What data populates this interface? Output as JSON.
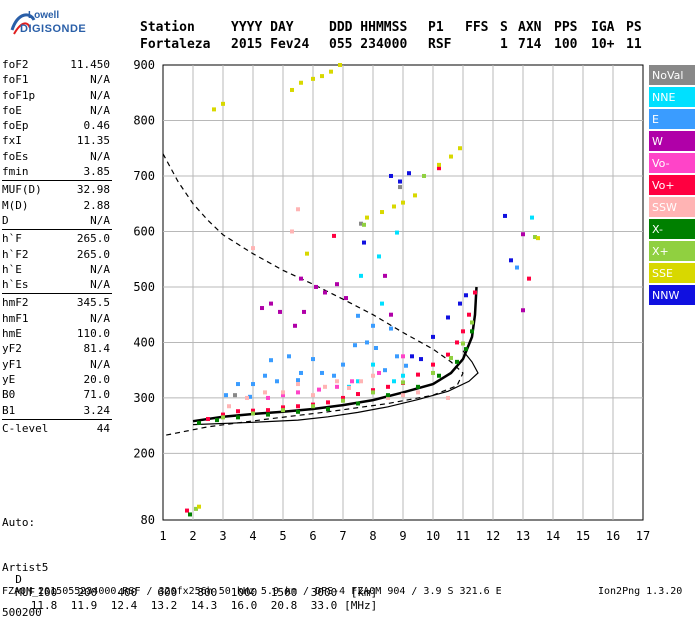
{
  "logo": {
    "brand": "Lowell",
    "model": "DIGISONDE"
  },
  "header": {
    "row1": [
      "Station",
      "YYYY DAY",
      "DDD HHMMSS",
      "P1",
      "FFS",
      "S",
      "AXN",
      "PPS",
      "IGA",
      "PS"
    ],
    "row2": [
      "Fortaleza",
      "2015 Fev24",
      "055 234000",
      "RSF",
      "",
      "1",
      "714",
      "100",
      "10+",
      "11"
    ]
  },
  "params": [
    {
      "k": "foF2",
      "v": "11.450"
    },
    {
      "k": "foF1",
      "v": "N/A"
    },
    {
      "k": "foF1p",
      "v": "N/A"
    },
    {
      "k": "foE",
      "v": "N/A"
    },
    {
      "k": "foEp",
      "v": "0.46"
    },
    {
      "k": "fxI",
      "v": "11.35"
    },
    {
      "k": "foEs",
      "v": "N/A"
    },
    {
      "k": "fmin",
      "v": "3.85"
    },
    {
      "k": "MUF(D)",
      "v": "32.98"
    },
    {
      "k": "M(D)",
      "v": "2.88"
    },
    {
      "k": "D",
      "v": "N/A"
    },
    {
      "k": "h`F",
      "v": "265.0"
    },
    {
      "k": "h`F2",
      "v": "265.0"
    },
    {
      "k": "h`E",
      "v": "N/A"
    },
    {
      "k": "h`Es",
      "v": "N/A"
    },
    {
      "k": "hmF2",
      "v": "345.5"
    },
    {
      "k": "hmF1",
      "v": "N/A"
    },
    {
      "k": "hmE",
      "v": "110.0"
    },
    {
      "k": "yF2",
      "v": "81.4"
    },
    {
      "k": "yF1",
      "v": "N/A"
    },
    {
      "k": "yE",
      "v": "20.0"
    },
    {
      "k": "B0",
      "v": "71.0"
    },
    {
      "k": "B1",
      "v": "3.24"
    },
    {
      "k": "C-level",
      "v": "44"
    }
  ],
  "auto": {
    "label": "Auto:",
    "system": "Artist5",
    "version": "500200"
  },
  "legend": [
    {
      "label": "NoVal",
      "color": "#888888"
    },
    {
      "label": "NNE",
      "color": "#00e0ff"
    },
    {
      "label": "E",
      "color": "#3a9cff"
    },
    {
      "label": "W",
      "color": "#b000a8"
    },
    {
      "label": "Vo-",
      "color": "#ff44c8"
    },
    {
      "label": "Vo+",
      "color": "#ff0040"
    },
    {
      "label": "SSW",
      "color": "#ffb4b4"
    },
    {
      "label": "X-",
      "color": "#008000"
    },
    {
      "label": "X+",
      "color": "#90d040"
    },
    {
      "label": "SSE",
      "color": "#d8d800"
    },
    {
      "label": "NNW",
      "color": "#1010e0"
    }
  ],
  "footer": {
    "d_label": "D",
    "d_values": [
      "100",
      "200",
      "400",
      "600",
      "800",
      "1000",
      "1500",
      "3000",
      "[km]"
    ],
    "muf_label": "MUF",
    "muf_values": [
      "11.8",
      "11.9",
      "12.4",
      "13.2",
      "14.3",
      "16.0",
      "20.8",
      "33.0",
      "[MHz]"
    ],
    "file_line": "FZA0M_2015055234000.RSF / 320fx256h 50 kHz 5.0 km / DPS-4 FZA0M 904 / 3.9 S 321.6 E",
    "program": "Ion2Png 1.3.20"
  },
  "chart_data": {
    "type": "scatter",
    "title": "",
    "xlabel": "",
    "ylabel": "",
    "xlim": [
      1,
      17
    ],
    "ylim": [
      80,
      900
    ],
    "x_ticks": [
      1,
      2,
      3,
      4,
      5,
      6,
      7,
      8,
      9,
      10,
      11,
      12,
      13,
      14,
      15,
      16,
      17
    ],
    "y_ticks": [
      80,
      200,
      300,
      400,
      500,
      600,
      700,
      800,
      900
    ],
    "grid": true,
    "legend_position": "right",
    "series": [
      {
        "name": "NoVal",
        "color": "#888888",
        "points": [
          [
            7.6,
            614
          ],
          [
            8.9,
            680
          ],
          [
            3.4,
            305
          ]
        ]
      },
      {
        "name": "NNE",
        "color": "#00e0ff",
        "points": [
          [
            7.5,
            330
          ],
          [
            8.0,
            360
          ],
          [
            8.3,
            470
          ],
          [
            8.7,
            330
          ],
          [
            9.0,
            340
          ],
          [
            7.6,
            520
          ],
          [
            8.2,
            555
          ],
          [
            8.8,
            598
          ],
          [
            13.3,
            625
          ],
          [
            7.2,
            320
          ]
        ]
      },
      {
        "name": "E",
        "color": "#3a9cff",
        "points": [
          [
            4.0,
            325
          ],
          [
            4.4,
            340
          ],
          [
            4.8,
            330
          ],
          [
            5.2,
            375
          ],
          [
            5.6,
            345
          ],
          [
            6.0,
            370
          ],
          [
            6.3,
            345
          ],
          [
            6.7,
            340
          ],
          [
            7.0,
            360
          ],
          [
            7.4,
            395
          ],
          [
            7.8,
            400
          ],
          [
            8.1,
            390
          ],
          [
            8.4,
            350
          ],
          [
            8.8,
            375
          ],
          [
            9.1,
            358
          ],
          [
            3.5,
            325
          ],
          [
            3.9,
            302
          ],
          [
            4.6,
            368
          ],
          [
            5.5,
            332
          ],
          [
            7.5,
            448
          ],
          [
            8.0,
            430
          ],
          [
            8.6,
            425
          ],
          [
            3.1,
            305
          ],
          [
            12.8,
            535
          ]
        ]
      },
      {
        "name": "W",
        "color": "#b000a8",
        "points": [
          [
            4.3,
            462
          ],
          [
            4.6,
            470
          ],
          [
            4.9,
            455
          ],
          [
            5.4,
            430
          ],
          [
            5.7,
            455
          ],
          [
            6.1,
            500
          ],
          [
            6.4,
            490
          ],
          [
            6.8,
            505
          ],
          [
            7.1,
            480
          ],
          [
            8.4,
            520
          ],
          [
            8.6,
            450
          ],
          [
            5.6,
            515
          ],
          [
            13.0,
            595
          ],
          [
            13.0,
            458
          ]
        ]
      },
      {
        "name": "Vo-",
        "color": "#ff44c8",
        "points": [
          [
            4.5,
            300
          ],
          [
            5.0,
            305
          ],
          [
            5.5,
            310
          ],
          [
            6.2,
            315
          ],
          [
            6.8,
            320
          ],
          [
            7.3,
            330
          ],
          [
            8.2,
            345
          ],
          [
            9.0,
            375
          ]
        ]
      },
      {
        "name": "Vo+",
        "color": "#ff0040",
        "points": [
          [
            2.5,
            262
          ],
          [
            3.0,
            270
          ],
          [
            3.5,
            276
          ],
          [
            4.0,
            277
          ],
          [
            4.5,
            278
          ],
          [
            5.0,
            283
          ],
          [
            5.5,
            285
          ],
          [
            6.0,
            288
          ],
          [
            6.5,
            292
          ],
          [
            7.0,
            300
          ],
          [
            7.5,
            307
          ],
          [
            8.0,
            314
          ],
          [
            8.5,
            320
          ],
          [
            9.0,
            327
          ],
          [
            9.5,
            342
          ],
          [
            10.0,
            360
          ],
          [
            10.5,
            378
          ],
          [
            10.8,
            400
          ],
          [
            11.0,
            420
          ],
          [
            11.2,
            450
          ],
          [
            11.4,
            490
          ],
          [
            6.7,
            592
          ],
          [
            10.2,
            714
          ],
          [
            13.2,
            515
          ],
          [
            1.8,
            97
          ]
        ]
      },
      {
        "name": "SSW",
        "color": "#ffb4b4",
        "points": [
          [
            3.2,
            285
          ],
          [
            3.8,
            300
          ],
          [
            4.4,
            310
          ],
          [
            5.0,
            310
          ],
          [
            5.5,
            325
          ],
          [
            6.0,
            305
          ],
          [
            6.4,
            320
          ],
          [
            6.8,
            330
          ],
          [
            7.2,
            318
          ],
          [
            7.6,
            330
          ],
          [
            8.0,
            340
          ],
          [
            8.5,
            300
          ],
          [
            9.0,
            305
          ],
          [
            9.5,
            310
          ],
          [
            10.5,
            300
          ],
          [
            4.0,
            570
          ],
          [
            5.3,
            600
          ],
          [
            5.5,
            640
          ]
        ]
      },
      {
        "name": "X-",
        "color": "#008000",
        "points": [
          [
            2.2,
            255
          ],
          [
            2.8,
            260
          ],
          [
            3.5,
            265
          ],
          [
            4.5,
            270
          ],
          [
            5.5,
            275
          ],
          [
            6.5,
            280
          ],
          [
            7.5,
            290
          ],
          [
            8.5,
            305
          ],
          [
            9.5,
            320
          ],
          [
            10.2,
            340
          ],
          [
            10.8,
            365
          ],
          [
            11.1,
            388
          ],
          [
            11.3,
            420
          ],
          [
            1.9,
            90
          ]
        ]
      },
      {
        "name": "X+",
        "color": "#90d040",
        "points": [
          [
            3.0,
            265
          ],
          [
            4.0,
            272
          ],
          [
            5.0,
            278
          ],
          [
            6.0,
            285
          ],
          [
            7.0,
            295
          ],
          [
            8.0,
            310
          ],
          [
            9.0,
            328
          ],
          [
            10.0,
            345
          ],
          [
            10.6,
            372
          ],
          [
            11.0,
            398
          ],
          [
            11.3,
            436
          ],
          [
            13.4,
            590
          ],
          [
            7.7,
            612
          ],
          [
            9.7,
            700
          ],
          [
            2.1,
            100
          ]
        ]
      },
      {
        "name": "SSE",
        "color": "#d8d800",
        "points": [
          [
            2.7,
            820
          ],
          [
            3.0,
            830
          ],
          [
            5.3,
            855
          ],
          [
            5.6,
            868
          ],
          [
            6.0,
            875
          ],
          [
            6.3,
            880
          ],
          [
            6.6,
            888
          ],
          [
            6.9,
            900
          ],
          [
            7.8,
            625
          ],
          [
            8.3,
            635
          ],
          [
            8.7,
            645
          ],
          [
            9.0,
            652
          ],
          [
            9.4,
            665
          ],
          [
            10.2,
            720
          ],
          [
            10.6,
            735
          ],
          [
            10.9,
            750
          ],
          [
            5.8,
            560
          ],
          [
            2.2,
            104
          ],
          [
            13.5,
            588
          ]
        ]
      },
      {
        "name": "NNW",
        "color": "#1010e0",
        "points": [
          [
            8.9,
            690
          ],
          [
            9.2,
            705
          ],
          [
            8.6,
            700
          ],
          [
            10.0,
            410
          ],
          [
            10.5,
            445
          ],
          [
            10.9,
            470
          ],
          [
            11.1,
            485
          ],
          [
            9.3,
            375
          ],
          [
            9.6,
            370
          ],
          [
            12.4,
            628
          ],
          [
            12.6,
            548
          ],
          [
            7.7,
            580
          ]
        ]
      }
    ],
    "traces": [
      {
        "name": "dashed profile",
        "style": "dashed",
        "points": [
          [
            1.0,
            740
          ],
          [
            1.5,
            690
          ],
          [
            2.0,
            650
          ],
          [
            2.5,
            620
          ],
          [
            3.0,
            594
          ],
          [
            4.0,
            560
          ],
          [
            5.0,
            530
          ],
          [
            6.0,
            505
          ],
          [
            7.0,
            478
          ],
          [
            8.0,
            450
          ],
          [
            9.0,
            418
          ],
          [
            10.0,
            388
          ],
          [
            10.6,
            365
          ],
          [
            11.0,
            345
          ],
          [
            10.8,
            322
          ],
          [
            10.0,
            305
          ],
          [
            8.5,
            290
          ],
          [
            6.5,
            275
          ],
          [
            4.5,
            262
          ],
          [
            2.5,
            248
          ],
          [
            1.0,
            232
          ]
        ]
      },
      {
        "name": "true height profile",
        "style": "solid",
        "points": [
          [
            2.0,
            252
          ],
          [
            4.0,
            256
          ],
          [
            5.5,
            260
          ],
          [
            6.5,
            266
          ],
          [
            7.5,
            274
          ],
          [
            8.5,
            284
          ],
          [
            9.5,
            297
          ],
          [
            10.5,
            312
          ],
          [
            11.2,
            330
          ],
          [
            11.5,
            345
          ],
          [
            11.3,
            365
          ],
          [
            11.0,
            385
          ]
        ]
      },
      {
        "name": "O trace",
        "style": "solid",
        "points": [
          [
            2.0,
            258
          ],
          [
            3.0,
            266
          ],
          [
            4.0,
            271
          ],
          [
            5.0,
            275
          ],
          [
            6.0,
            280
          ],
          [
            7.0,
            287
          ],
          [
            8.0,
            296
          ],
          [
            9.0,
            310
          ],
          [
            10.0,
            325
          ],
          [
            10.6,
            345
          ],
          [
            11.0,
            370
          ],
          [
            11.3,
            410
          ],
          [
            11.4,
            450
          ],
          [
            11.45,
            500
          ]
        ]
      }
    ]
  }
}
